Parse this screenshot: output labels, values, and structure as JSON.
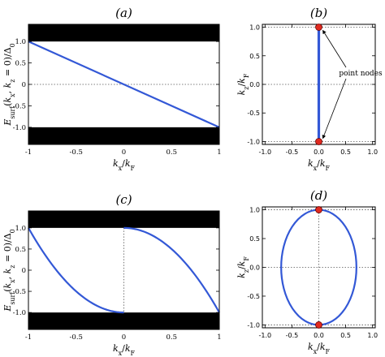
{
  "chart_data": [
    {
      "panel": "(a)",
      "type": "line",
      "title": "(a)",
      "xlabel": "k_x/k_F",
      "ylabel": "E_surf(k_x, k_z = 0)/Δ0",
      "xlim": [
        -1,
        1
      ],
      "ylim": [
        -1.4,
        1.4
      ],
      "xticks": [
        "-1",
        "-0.5",
        "0",
        "0.5",
        "1"
      ],
      "yticks": [
        "1.0",
        "0.5",
        "0",
        "-0.5",
        "-1.0"
      ],
      "bands": [
        [
          1.0,
          1.4
        ],
        [
          -1.4,
          -1.0
        ]
      ],
      "series": [
        {
          "x": [
            -1,
            1
          ],
          "y": [
            1,
            -1
          ]
        }
      ],
      "guides": "dotted y=0 line"
    },
    {
      "panel": "(b)",
      "type": "line",
      "title": "(b)",
      "xlabel": "k_x/k_F",
      "ylabel": "k_z/k_F",
      "xlim": [
        -1.05,
        1.05
      ],
      "ylim": [
        -1.05,
        1.05
      ],
      "xticks": [
        "-1.0",
        "-0.5",
        "0.0",
        "0.5",
        "1.0"
      ],
      "yticks": [
        "1.0",
        "0.5",
        "0.0",
        "-0.5",
        "-1.0"
      ],
      "series": [
        {
          "x": [
            0,
            0
          ],
          "y": [
            -1,
            1
          ]
        }
      ],
      "points": [
        {
          "x": 0,
          "y": 1
        },
        {
          "x": 0,
          "y": -1
        }
      ],
      "annotation": "point nodes",
      "guides": "dotted lines at y=±1, x=0, y=0"
    },
    {
      "panel": "(c)",
      "type": "line",
      "title": "(c)",
      "xlabel": "k_x/k_F",
      "ylabel": "E_surf(k_x, k_z = 0)/Δ0",
      "xlim": [
        -1,
        1
      ],
      "ylim": [
        -1.4,
        1.4
      ],
      "xticks": [
        "-1",
        "-0.5",
        "0",
        "0.5",
        "1"
      ],
      "yticks": [
        "1.0",
        "0.5",
        "0",
        "-0.5",
        "-1.0"
      ],
      "bands": [
        [
          1.0,
          1.4
        ],
        [
          -1.4,
          -1.0
        ]
      ],
      "series": [
        {
          "x": [
            -1,
            -0.75,
            -0.5,
            -0.25,
            0
          ],
          "y": [
            1.0,
            0.125,
            -0.5,
            -0.875,
            -1.0
          ]
        },
        {
          "x": [
            0,
            0.25,
            0.5,
            0.75,
            1
          ],
          "y": [
            1.0,
            0.875,
            0.5,
            -0.125,
            -1.0
          ]
        }
      ],
      "guides": "dotted line at x=0 (y from -1 to 1)"
    },
    {
      "panel": "(d)",
      "type": "line",
      "title": "(d)",
      "xlabel": "k_x/k_F",
      "ylabel": "k_z/k_F",
      "xlim": [
        -1.05,
        1.05
      ],
      "ylim": [
        -1.05,
        1.05
      ],
      "xticks": [
        "-1.0",
        "-0.5",
        "0.0",
        "0.5",
        "1.0"
      ],
      "yticks": [
        "1.0",
        "0.5",
        "0.0",
        "-0.5",
        "-1.0"
      ],
      "ellipse": {
        "cx": 0,
        "cy": 0,
        "rx": 0.7,
        "ry": 1.0
      },
      "points": [
        {
          "x": 0,
          "y": 1
        },
        {
          "x": 0,
          "y": -1
        }
      ],
      "guides": "dotted lines at y=±1, x=0, y=0"
    }
  ],
  "colors": {
    "curve": "#3358d6",
    "node_fill": "#e02a1f",
    "band": "#000000",
    "guide": "#555555"
  }
}
